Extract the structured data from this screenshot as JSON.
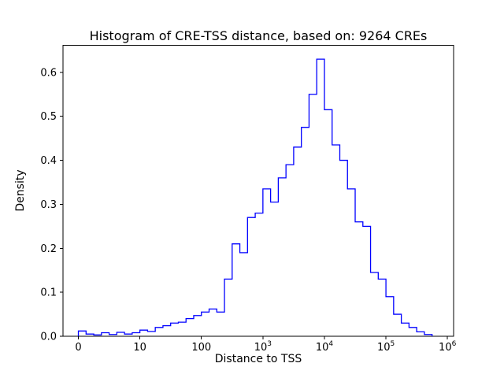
{
  "figure": {
    "background": "#ffffff"
  },
  "chart_data": {
    "type": "bar",
    "subtype": "step-histogram",
    "title": "Histogram of CRE-TSS distance, based on: 9264 CREs",
    "xlabel": "Distance to TSS",
    "ylabel": "Density",
    "x_scale": "symlog",
    "x_axis_note": "u units: u = value/10 for 0-10, u = log10(value) for value >= 10",
    "ylim": [
      0,
      0.6615
    ],
    "line_color": "#0000ff",
    "axis_color": "#000000",
    "y_ticks": [
      0.0,
      0.1,
      0.2,
      0.3,
      0.4,
      0.5,
      0.6
    ],
    "x_ticks": [
      {
        "u": 0,
        "label": "0"
      },
      {
        "u": 1,
        "label": "10"
      },
      {
        "u": 2,
        "label": "100"
      },
      {
        "u": 3,
        "base": "10",
        "exp": "3"
      },
      {
        "u": 4,
        "base": "10",
        "exp": "4"
      },
      {
        "u": 5,
        "base": "10",
        "exp": "5"
      },
      {
        "u": 6,
        "base": "10",
        "exp": "6"
      }
    ],
    "bins": {
      "start_u": 0,
      "width_u": 0.125
    },
    "densities": [
      0.012,
      0.005,
      0.003,
      0.008,
      0.004,
      0.009,
      0.005,
      0.008,
      0.014,
      0.011,
      0.02,
      0.024,
      0.03,
      0.032,
      0.04,
      0.047,
      0.055,
      0.062,
      0.055,
      0.13,
      0.21,
      0.19,
      0.27,
      0.28,
      0.335,
      0.305,
      0.36,
      0.39,
      0.43,
      0.475,
      0.55,
      0.63,
      0.515,
      0.435,
      0.4,
      0.335,
      0.26,
      0.25,
      0.145,
      0.13,
      0.09,
      0.05,
      0.03,
      0.02,
      0.01,
      0.004
    ]
  }
}
